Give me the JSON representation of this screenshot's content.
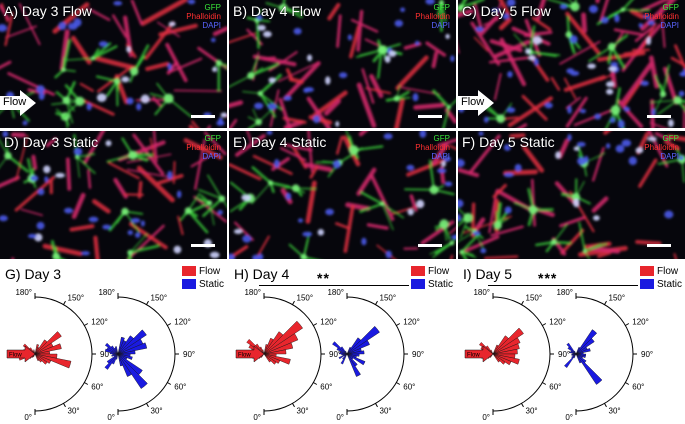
{
  "figure": {
    "micrographs": [
      {
        "title": "A) Day 3 Flow",
        "flow_label": "Flow",
        "legend": [
          "GFP",
          "Phalloidin",
          "DAPI"
        ],
        "scheme": 1
      },
      {
        "title": "B) Day 4 Flow",
        "flow_label": "",
        "legend": [
          "GFP",
          "Phalloidin",
          "DAPI"
        ],
        "scheme": 2
      },
      {
        "title": "C) Day 5 Flow",
        "flow_label": "Flow",
        "legend": [
          "GFP",
          "Phalloidin",
          "DAPI"
        ],
        "scheme": 3
      },
      {
        "title": "D) Day 3 Static",
        "flow_label": "",
        "legend": [
          "GFP",
          "Phalloidin",
          "DAPI"
        ],
        "scheme": 4
      },
      {
        "title": "E) Day 4 Static",
        "flow_label": "",
        "legend": [
          "GFP",
          "Phalloidin",
          "DAPI"
        ],
        "scheme": 5
      },
      {
        "title": "F) Day 5 Static",
        "flow_label": "",
        "legend": [
          "GFP",
          "Phalloidin",
          "DAPI"
        ],
        "scheme": 6
      }
    ],
    "colors": {
      "flow": "#e8262d",
      "static": "#1a1ae0",
      "gfp": "#39e639",
      "phalloidin": "#ff3030",
      "dapi": "#5a64ff"
    },
    "rose_legend": [
      "Flow",
      "Static"
    ]
  },
  "chart_data": [
    {
      "type": "rose",
      "title": "G) Day 3",
      "significance": "",
      "angle_labels": [
        "180°",
        "150°",
        "120°",
        "90°",
        "60°",
        "30°",
        "0°"
      ],
      "series": [
        {
          "name": "Flow",
          "arrow_label": "Flow",
          "values": [
            0,
            0.2,
            0.15,
            0.35,
            0.65,
            0.4,
            0.55,
            0.3,
            0.45,
            0.75,
            0.35,
            0.3,
            0.2,
            0.15,
            0,
            0
          ]
        },
        {
          "name": "Static",
          "arrow_label": "",
          "values": [
            0,
            0.35,
            0.3,
            0.45,
            0.7,
            0.55,
            0.6,
            0.35,
            0.25,
            0.3,
            0.2,
            0.6,
            0.85,
            0.5,
            0.25,
            0
          ]
        }
      ]
    },
    {
      "type": "rose",
      "title": "H) Day 4",
      "significance": "**",
      "angle_labels": [
        "180°",
        "150°",
        "120°",
        "90°",
        "60°",
        "30°",
        "0°"
      ],
      "series": [
        {
          "name": "Flow",
          "arrow_label": "Flow",
          "values": [
            0,
            0.2,
            0.35,
            0.55,
            0.95,
            0.75,
            0.6,
            0.45,
            0.25,
            0.55,
            0.35,
            0.3,
            0.2,
            0,
            0,
            0
          ]
        },
        {
          "name": "Static",
          "arrow_label": "",
          "values": [
            0,
            0,
            0.15,
            0.4,
            0.8,
            0.5,
            0.3,
            0.35,
            0.25,
            0.2,
            0.4,
            0.15,
            0.3,
            0.5,
            0,
            0
          ]
        }
      ]
    },
    {
      "type": "rose",
      "title": "I) Day 5",
      "significance": "***",
      "angle_labels": [
        "180°",
        "150°",
        "120°",
        "90°",
        "60°",
        "30°",
        "0°"
      ],
      "series": [
        {
          "name": "Flow",
          "arrow_label": "Flow",
          "values": [
            0,
            0,
            0.2,
            0.45,
            0.75,
            0.6,
            0.55,
            0.5,
            0.45,
            0.55,
            0.4,
            0.3,
            0.2,
            0,
            0,
            0
          ]
        },
        {
          "name": "Static",
          "arrow_label": "",
          "values": [
            0,
            0,
            0.15,
            0.6,
            0.45,
            0.25,
            0.3,
            0.15,
            0.2,
            0.2,
            0.15,
            0.25,
            0.75,
            0.2,
            0,
            0
          ]
        }
      ]
    }
  ]
}
